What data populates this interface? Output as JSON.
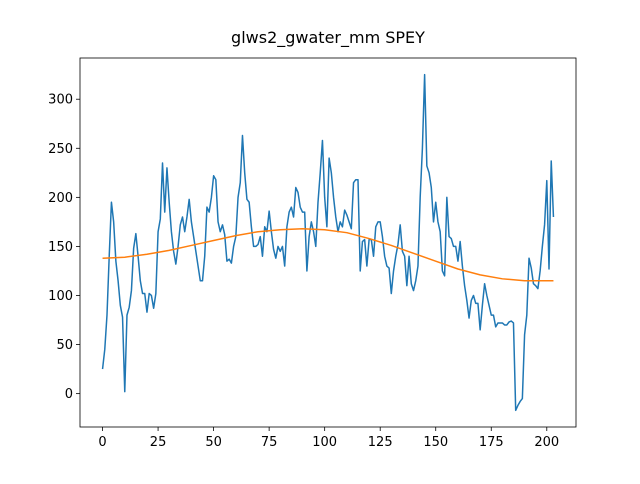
{
  "chart_data": {
    "type": "line",
    "title": "glws2_gwater_mm SPEY",
    "xlim": [
      -10.15,
      213.15
    ],
    "ylim": [
      -34,
      342
    ],
    "xticks": [
      0,
      25,
      50,
      75,
      100,
      125,
      150,
      175,
      200
    ],
    "yticks": [
      0,
      50,
      100,
      150,
      200,
      250,
      300
    ],
    "series": [
      {
        "color": "#1f77b4",
        "x": [
          0,
          1,
          2,
          3,
          4,
          5,
          6,
          7,
          8,
          9,
          10,
          11,
          12,
          13,
          14,
          15,
          16,
          17,
          18,
          19,
          20,
          21,
          22,
          23,
          24,
          25,
          26,
          27,
          28,
          29,
          30,
          31,
          32,
          33,
          34,
          35,
          36,
          37,
          38,
          39,
          40,
          41,
          42,
          43,
          44,
          45,
          46,
          47,
          48,
          49,
          50,
          51,
          52,
          53,
          54,
          55,
          56,
          57,
          58,
          59,
          60,
          61,
          62,
          63,
          64,
          65,
          66,
          67,
          68,
          69,
          70,
          71,
          72,
          73,
          74,
          75,
          76,
          77,
          78,
          79,
          80,
          81,
          82,
          83,
          84,
          85,
          86,
          87,
          88,
          89,
          90,
          91,
          92,
          93,
          94,
          95,
          96,
          97,
          98,
          99,
          100,
          101,
          102,
          103,
          104,
          105,
          106,
          107,
          108,
          109,
          110,
          111,
          112,
          113,
          114,
          115,
          116,
          117,
          118,
          119,
          120,
          121,
          122,
          123,
          124,
          125,
          126,
          127,
          128,
          129,
          130,
          131,
          132,
          133,
          134,
          135,
          136,
          137,
          138,
          139,
          140,
          141,
          142,
          143,
          144,
          145,
          146,
          147,
          148,
          149,
          150,
          151,
          152,
          153,
          154,
          155,
          156,
          157,
          158,
          159,
          160,
          161,
          162,
          163,
          164,
          165,
          166,
          167,
          168,
          169,
          170,
          171,
          172,
          173,
          174,
          175,
          176,
          177,
          178,
          179,
          180,
          181,
          182,
          183,
          184,
          185,
          186,
          187,
          188,
          189,
          190,
          191,
          192,
          193,
          194,
          195,
          196,
          197,
          198,
          199,
          200,
          201,
          202,
          203
        ],
        "values": [
          25,
          45,
          80,
          140,
          195,
          175,
          135,
          115,
          90,
          78,
          2,
          80,
          88,
          105,
          148,
          163,
          140,
          115,
          102,
          102,
          83,
          102,
          100,
          87,
          102,
          165,
          178,
          235,
          185,
          230,
          195,
          165,
          145,
          132,
          150,
          172,
          180,
          165,
          180,
          198,
          175,
          160,
          145,
          130,
          115,
          115,
          140,
          190,
          185,
          200,
          222,
          218,
          175,
          165,
          172,
          162,
          135,
          137,
          133,
          150,
          160,
          200,
          215,
          263,
          225,
          198,
          195,
          170,
          150,
          150,
          152,
          160,
          140,
          170,
          165,
          186,
          165,
          147,
          138,
          150,
          145,
          150,
          130,
          170,
          185,
          190,
          180,
          210,
          205,
          190,
          185,
          185,
          125,
          160,
          175,
          165,
          150,
          195,
          225,
          258,
          200,
          170,
          240,
          225,
          200,
          180,
          165,
          175,
          170,
          187,
          182,
          175,
          168,
          215,
          218,
          218,
          125,
          155,
          157,
          130,
          157,
          157,
          140,
          170,
          175,
          175,
          160,
          140,
          130,
          128,
          102,
          125,
          140,
          152,
          172,
          145,
          140,
          110,
          140,
          112,
          105,
          115,
          130,
          200,
          250,
          325,
          232,
          225,
          210,
          175,
          195,
          175,
          165,
          125,
          120,
          200,
          160,
          158,
          150,
          150,
          135,
          155,
          130,
          110,
          95,
          77,
          95,
          100,
          92,
          92,
          65,
          90,
          112,
          100,
          90,
          80,
          80,
          68,
          72,
          72,
          72,
          70,
          70,
          73,
          74,
          72,
          -17,
          -12,
          -8,
          -5,
          60,
          80,
          138,
          128,
          112,
          110,
          107,
          125,
          150,
          172,
          217,
          127,
          237,
          180
        ]
      },
      {
        "color": "#ff7f0e",
        "x": [
          0,
          10,
          20,
          30,
          40,
          50,
          60,
          70,
          80,
          90,
          100,
          110,
          120,
          130,
          140,
          150,
          160,
          170,
          180,
          190,
          200,
          203
        ],
        "values": [
          138,
          139,
          142,
          146,
          151,
          156,
          161,
          165,
          167,
          168,
          167,
          164,
          158,
          151,
          143,
          135,
          127,
          121,
          117,
          115,
          115,
          115
        ]
      }
    ]
  }
}
